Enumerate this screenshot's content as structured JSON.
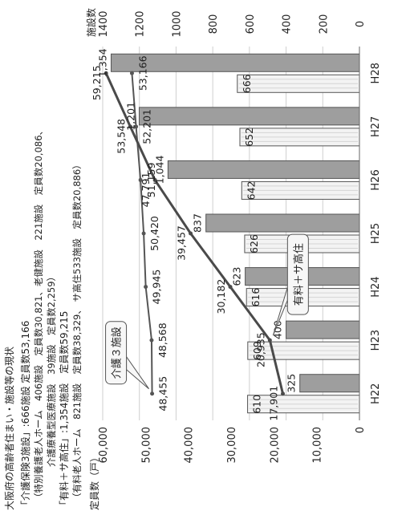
{
  "header": {
    "title": "大阪府の高齢者住まい・施設等の現状",
    "lines": [
      "「介護保険3施設」:666施設 定員数53,166",
      "（特別養護老人ホーム　406施設　定員数30,821、老健施設　221施設　定員数20,086、",
      "介護療養型医療施設　39施設　定員数2,259）",
      "「有料＋サ高住」:1,354施設　定員数59,215",
      "（有料老人ホーム　821施設　定員数38,329、 サ高住533施設　定員数20,886）"
    ]
  },
  "chart_data": {
    "type": "bar",
    "categories": [
      "H22",
      "H23",
      "H24",
      "H25",
      "H26",
      "H27",
      "H28"
    ],
    "y_left": {
      "label": "定員数（戸）",
      "ticks": [
        "0",
        "10,000",
        "20,000",
        "30,000",
        "40,000",
        "50,000",
        "60,000"
      ],
      "lim": [
        0,
        60000
      ]
    },
    "y_right": {
      "label": "施設数",
      "ticks": [
        "0",
        "200",
        "400",
        "600",
        "800",
        "1000",
        "1200",
        "1400"
      ],
      "lim": [
        0,
        1400
      ]
    },
    "series": [
      {
        "name": "介護３施設",
        "kind": "bar",
        "axis": "right",
        "values": [
          610,
          609,
          616,
          626,
          642,
          652,
          666
        ],
        "labels": [
          "610",
          "609",
          "616",
          "626",
          "642",
          "652",
          "666"
        ],
        "color": "#f3f3f3"
      },
      {
        "name": "有料＋サ高住",
        "kind": "bar",
        "axis": "right",
        "values": [
          325,
          400,
          623,
          837,
          1044,
          1201,
          1354
        ],
        "labels": [
          "325",
          "400",
          "623",
          "837",
          "1,044",
          "1,201",
          "1,354"
        ],
        "color": "#9e9e9e"
      },
      {
        "name": "介護３施設",
        "kind": "line",
        "axis": "left",
        "values": [
          48455,
          48568,
          49945,
          50420,
          51159,
          52201,
          53166
        ],
        "labels": [
          "48,455",
          "48,568",
          "49,945",
          "50,420",
          "51,159",
          "52,201",
          "53,166"
        ],
        "color": "#555555"
      },
      {
        "name": "有料＋サ高住",
        "kind": "line",
        "axis": "left",
        "values": [
          17901,
          20935,
          30182,
          39457,
          47791,
          53548,
          59215
        ],
        "labels": [
          "17,901",
          "20,935",
          "30,182",
          "39,457",
          "47,791",
          "53,548",
          "59,215"
        ],
        "color": "#4a4a4a"
      }
    ],
    "callouts": [
      {
        "text": "介護３施設",
        "series": 2
      },
      {
        "text": "有料＋サ高住",
        "series": 3
      }
    ],
    "grid": true
  }
}
